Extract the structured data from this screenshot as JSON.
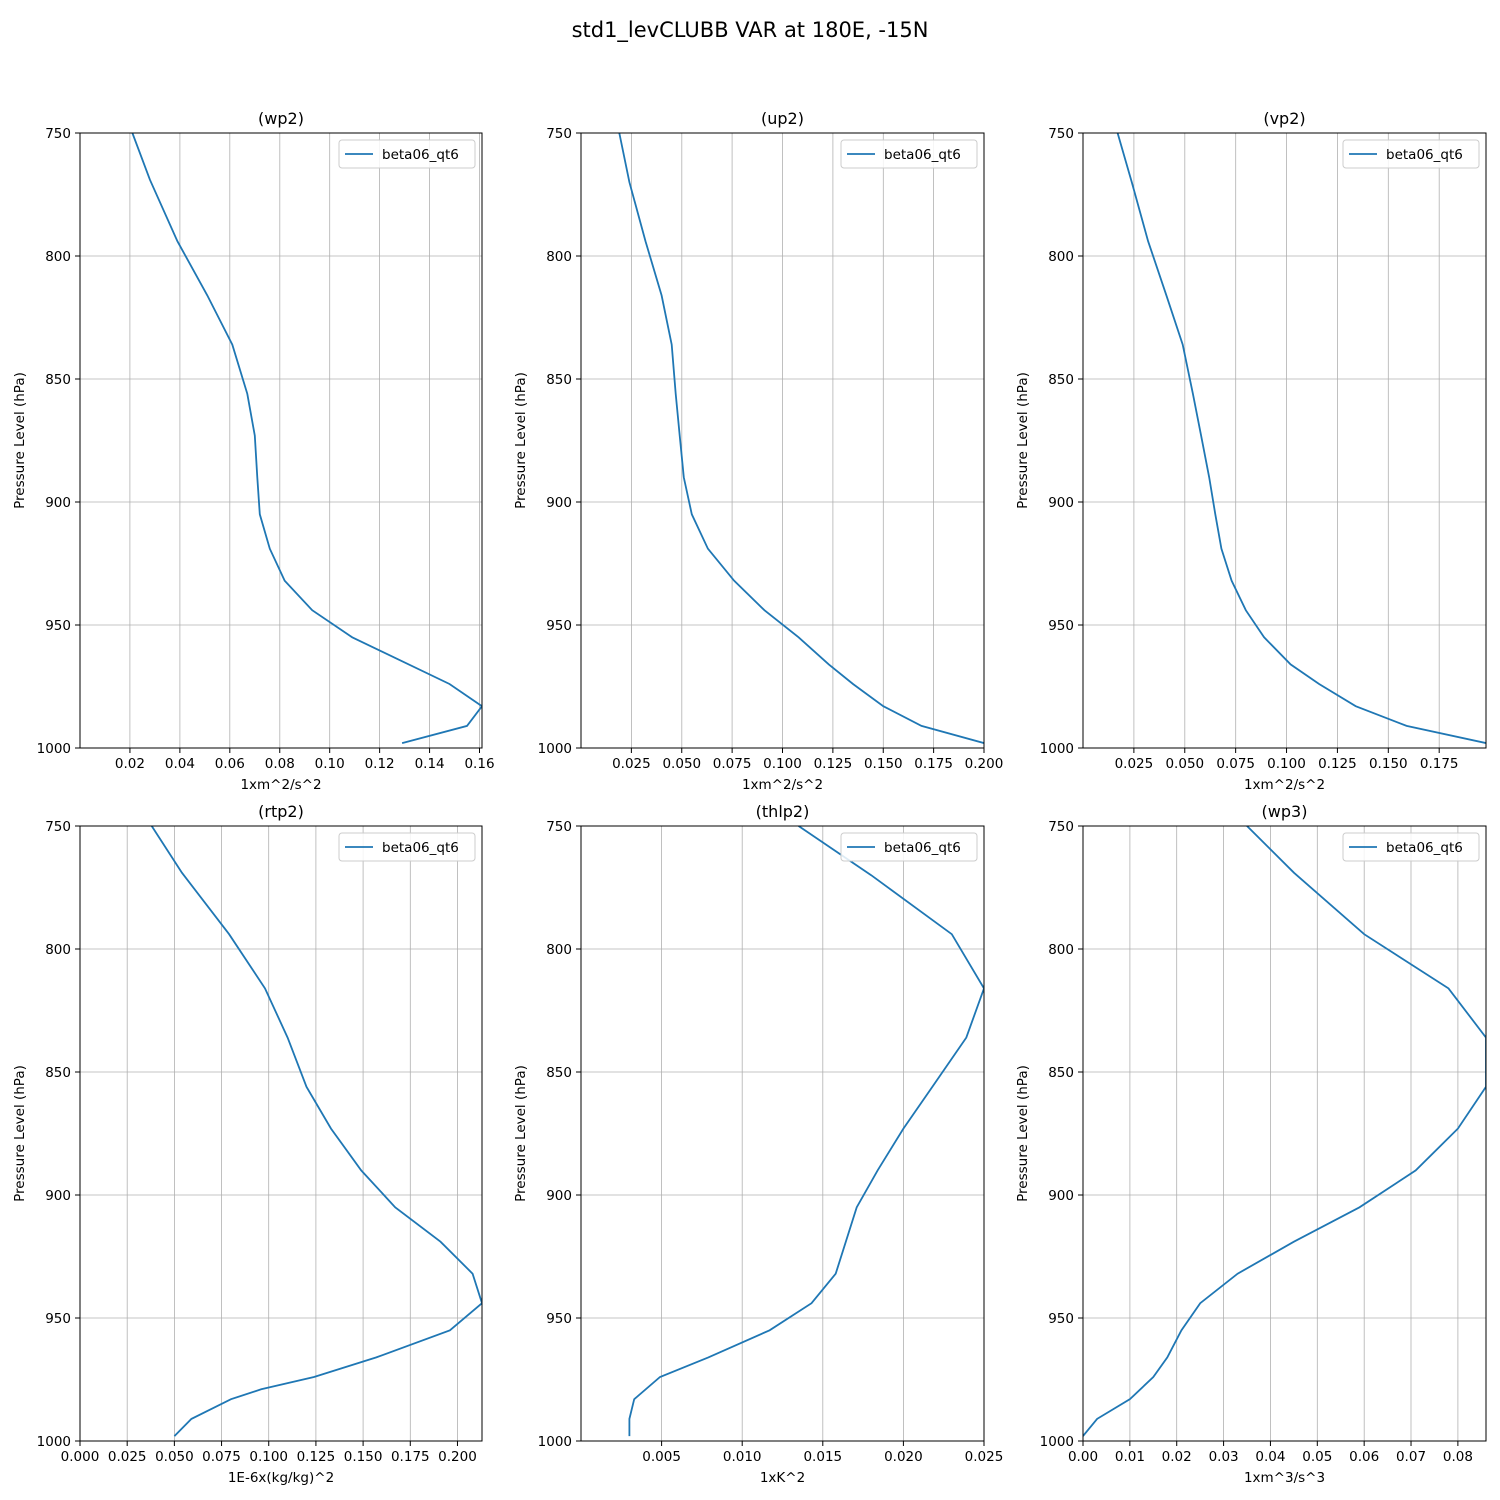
{
  "figure": {
    "title": "std1_levCLUBB VAR at 180E, -15N"
  },
  "chart_data": [
    {
      "type": "line",
      "title": "(wp2)",
      "xlabel": "1xm^2/s^2",
      "ylabel": "Pressure Level (hPa)",
      "xlim": [
        0.0,
        0.161
      ],
      "xticks": [
        0.02,
        0.04,
        0.06,
        0.08,
        0.1,
        0.12,
        0.14,
        0.16
      ],
      "xtick_labels": [
        "0.02",
        "0.04",
        "0.06",
        "0.08",
        "0.10",
        "0.12",
        "0.14",
        "0.16"
      ],
      "ylim": [
        1000,
        750
      ],
      "yticks": [
        750,
        800,
        850,
        900,
        950,
        1000
      ],
      "ytick_labels": [
        "750",
        "800",
        "850",
        "900",
        "950",
        "1000"
      ],
      "grid": true,
      "legend": "top-right",
      "series": [
        {
          "name": "beta06_qt6",
          "color": "#1f77b4",
          "x": [
            0.021,
            0.028,
            0.039,
            0.051,
            0.061,
            0.067,
            0.07,
            0.071,
            0.072,
            0.076,
            0.082,
            0.093,
            0.109,
            0.148,
            0.161,
            0.155,
            0.129
          ],
          "y": [
            750,
            769,
            794,
            816,
            836,
            856,
            873,
            890,
            905,
            919,
            932,
            944,
            955,
            974,
            983,
            991,
            998
          ]
        }
      ]
    },
    {
      "type": "line",
      "title": "(up2)",
      "xlabel": "1xm^2/s^2",
      "ylabel": "Pressure Level (hPa)",
      "xlim": [
        0.0,
        0.2
      ],
      "xticks": [
        0.025,
        0.05,
        0.075,
        0.1,
        0.125,
        0.15,
        0.175,
        0.2
      ],
      "xtick_labels": [
        "0.025",
        "0.050",
        "0.075",
        "0.100",
        "0.125",
        "0.150",
        "0.175",
        "0.200"
      ],
      "ylim": [
        1000,
        750
      ],
      "yticks": [
        750,
        800,
        850,
        900,
        950,
        1000
      ],
      "ytick_labels": [
        "750",
        "800",
        "850",
        "900",
        "950",
        "1000"
      ],
      "grid": true,
      "legend": "top-right",
      "series": [
        {
          "name": "beta06_qt6",
          "color": "#1f77b4",
          "x": [
            0.019,
            0.024,
            0.032,
            0.04,
            0.045,
            0.047,
            0.049,
            0.051,
            0.055,
            0.063,
            0.076,
            0.091,
            0.108,
            0.123,
            0.135,
            0.15,
            0.169,
            0.2
          ],
          "y": [
            750,
            770,
            794,
            816,
            836,
            856,
            873,
            890,
            905,
            919,
            932,
            944,
            955,
            966,
            974,
            983,
            991,
            998
          ]
        }
      ]
    },
    {
      "type": "line",
      "title": "(vp2)",
      "xlabel": "1xm^2/s^2",
      "ylabel": "Pressure Level (hPa)",
      "xlim": [
        0.0,
        0.198
      ],
      "xticks": [
        0.025,
        0.05,
        0.075,
        0.1,
        0.125,
        0.15,
        0.175
      ],
      "xtick_labels": [
        "0.025",
        "0.050",
        "0.075",
        "0.100",
        "0.125",
        "0.150",
        "0.175"
      ],
      "ylim": [
        1000,
        750
      ],
      "yticks": [
        750,
        800,
        850,
        900,
        950,
        1000
      ],
      "ytick_labels": [
        "750",
        "800",
        "850",
        "900",
        "950",
        "1000"
      ],
      "grid": true,
      "legend": "top-right",
      "series": [
        {
          "name": "beta06_qt6",
          "color": "#1f77b4",
          "x": [
            0.017,
            0.024,
            0.032,
            0.041,
            0.049,
            0.054,
            0.058,
            0.062,
            0.065,
            0.068,
            0.073,
            0.08,
            0.089,
            0.102,
            0.116,
            0.134,
            0.159,
            0.198
          ],
          "y": [
            750,
            770,
            794,
            816,
            836,
            856,
            873,
            890,
            905,
            919,
            932,
            944,
            955,
            966,
            974,
            983,
            991,
            998
          ]
        }
      ]
    },
    {
      "type": "line",
      "title": "(rtp2)",
      "xlabel": "1E-6x(kg/kg)^2",
      "ylabel": "Pressure Level (hPa)",
      "xlim": [
        0.0,
        0.213
      ],
      "xticks": [
        0.0,
        0.025,
        0.05,
        0.075,
        0.1,
        0.125,
        0.15,
        0.175,
        0.2
      ],
      "xtick_labels": [
        "0.000",
        "0.025",
        "0.050",
        "0.075",
        "0.100",
        "0.125",
        "0.150",
        "0.175",
        "0.200"
      ],
      "ylim": [
        1000,
        750
      ],
      "yticks": [
        750,
        800,
        850,
        900,
        950,
        1000
      ],
      "ytick_labels": [
        "750",
        "800",
        "850",
        "900",
        "950",
        "1000"
      ],
      "grid": true,
      "legend": "top-right",
      "series": [
        {
          "name": "beta06_qt6",
          "color": "#1f77b4",
          "x": [
            0.038,
            0.054,
            0.079,
            0.098,
            0.11,
            0.12,
            0.133,
            0.149,
            0.167,
            0.191,
            0.208,
            0.213,
            0.196,
            0.157,
            0.124,
            0.096,
            0.08,
            0.059,
            0.05
          ],
          "y": [
            750,
            769,
            794,
            816,
            836,
            856,
            873,
            890,
            905,
            919,
            932,
            944,
            955,
            966,
            974,
            979,
            983,
            991,
            998
          ]
        }
      ]
    },
    {
      "type": "line",
      "title": "(thlp2)",
      "xlabel": "1xK^2",
      "ylabel": "Pressure Level (hPa)",
      "xlim": [
        0.0,
        0.025
      ],
      "xticks": [
        0.005,
        0.01,
        0.015,
        0.02,
        0.025
      ],
      "xtick_labels": [
        "0.005",
        "0.010",
        "0.015",
        "0.020",
        "0.025"
      ],
      "ylim": [
        1000,
        750
      ],
      "yticks": [
        750,
        800,
        850,
        900,
        950,
        1000
      ],
      "ytick_labels": [
        "750",
        "800",
        "850",
        "900",
        "950",
        "1000"
      ],
      "grid": true,
      "legend": "top-right",
      "series": [
        {
          "name": "beta06_qt6",
          "color": "#1f77b4",
          "x": [
            0.0135,
            0.018,
            0.023,
            0.025,
            0.0239,
            0.0218,
            0.02,
            0.0184,
            0.0171,
            0.0158,
            0.0143,
            0.0117,
            0.0079,
            0.0049,
            0.0033,
            0.003,
            0.003
          ],
          "y": [
            750,
            770,
            794,
            816,
            836,
            856,
            873,
            890,
            905,
            932,
            944,
            955,
            966,
            974,
            983,
            991,
            998
          ]
        }
      ]
    },
    {
      "type": "line",
      "title": "(wp3)",
      "xlabel": "1xm^3/s^3",
      "ylabel": "Pressure Level (hPa)",
      "xlim": [
        0.0,
        0.086
      ],
      "xticks": [
        0.0,
        0.01,
        0.02,
        0.03,
        0.04,
        0.05,
        0.06,
        0.07,
        0.08
      ],
      "xtick_labels": [
        "0.00",
        "0.01",
        "0.02",
        "0.03",
        "0.04",
        "0.05",
        "0.06",
        "0.07",
        "0.08"
      ],
      "ylim": [
        1000,
        750
      ],
      "yticks": [
        750,
        800,
        850,
        900,
        950,
        1000
      ],
      "ytick_labels": [
        "750",
        "800",
        "850",
        "900",
        "950",
        "1000"
      ],
      "grid": true,
      "legend": "top-right",
      "series": [
        {
          "name": "beta06_qt6",
          "color": "#1f77b4",
          "x": [
            0.035,
            0.045,
            0.06,
            0.078,
            0.086,
            0.086,
            0.08,
            0.071,
            0.059,
            0.045,
            0.033,
            0.025,
            0.021,
            0.018,
            0.015,
            0.01,
            0.003,
            0.0
          ],
          "y": [
            750,
            769,
            794,
            816,
            836,
            856,
            873,
            890,
            905,
            919,
            932,
            944,
            955,
            966,
            974,
            983,
            991,
            998
          ]
        }
      ]
    }
  ]
}
